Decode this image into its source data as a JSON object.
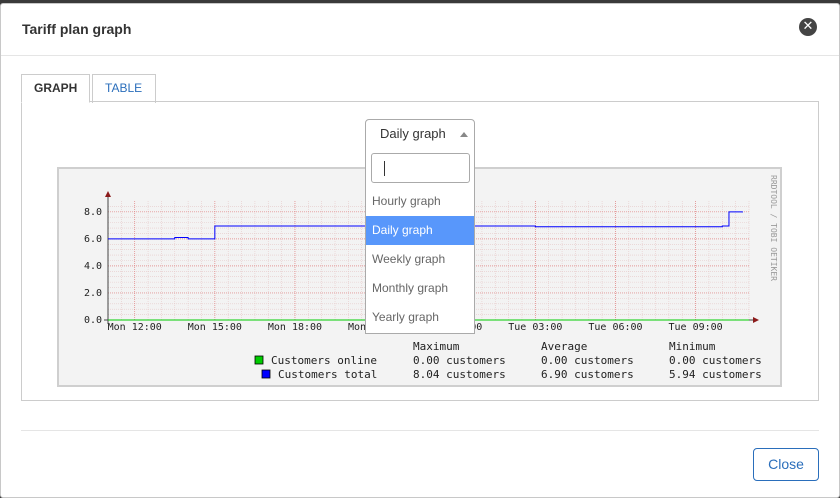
{
  "modal": {
    "title": "Tariff plan graph",
    "close_icon": "times-circle-icon"
  },
  "tabs": [
    {
      "label": "GRAPH",
      "active": true
    },
    {
      "label": "TABLE",
      "active": false
    }
  ],
  "select": {
    "value": "Daily graph",
    "search_value": "",
    "options": [
      "Hourly graph",
      "Daily graph",
      "Weekly graph",
      "Monthly graph",
      "Yearly graph"
    ],
    "selected_index": 1
  },
  "chart_data": {
    "type": "line",
    "side_label": "RRDTOOL / TOBI OETIKER",
    "x_ticks": [
      "Mon 12:00",
      "Mon 15:00",
      "Mon 18:00",
      "Mon 21:00",
      "Tue 00:00",
      "Tue 03:00",
      "Tue 06:00",
      "Tue 09:00"
    ],
    "y_ticks": [
      "0.0",
      "2.0",
      "4.0",
      "6.0",
      "8.0"
    ],
    "ylim": [
      0,
      8.8
    ],
    "grid": true,
    "series": [
      {
        "name": "Customers online",
        "color": "#00cc00",
        "x": [
          "Mon 11:00",
          "Tue 11:00"
        ],
        "y": [
          0,
          0
        ]
      },
      {
        "name": "Customers total",
        "color": "#0000ff",
        "x": [
          "Mon 11:00",
          "Mon 12:30",
          "Mon 13:30",
          "Mon 14:00",
          "Mon 15:00",
          "Mon 18:00",
          "Mon 21:00",
          "Tue 00:00",
          "Tue 03:00",
          "Tue 06:00",
          "Tue 09:00",
          "Tue 10:00",
          "Tue 10:15",
          "Tue 10:45"
        ],
        "y": [
          6.0,
          6.0,
          6.1,
          6.0,
          6.95,
          6.95,
          6.95,
          6.95,
          6.9,
          6.9,
          6.9,
          6.95,
          8.0,
          7.95
        ]
      }
    ],
    "legend_headers": {
      "maximum": "Maximum",
      "average": "Average",
      "minimum": "Minimum"
    },
    "legend": [
      {
        "name": "Customers online",
        "color": "#00cc00",
        "maximum": "0.00 customers",
        "average": "0.00 customers",
        "minimum": "0.00 customers"
      },
      {
        "name": "Customers total",
        "color": "#0000ff",
        "maximum": "8.04 customers",
        "average": "6.90 customers",
        "minimum": "5.94 customers"
      }
    ]
  },
  "footer": {
    "close_label": "Close"
  }
}
